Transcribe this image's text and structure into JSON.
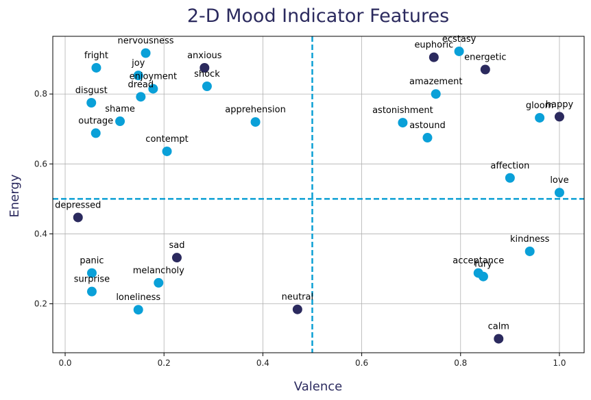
{
  "chart_data": {
    "type": "scatter",
    "title": "2-D Mood Indicator Features",
    "xlabel": "Valence",
    "ylabel": "Energy",
    "xlim": [
      -0.025,
      1.05
    ],
    "ylim": [
      0.06,
      0.965
    ],
    "xticks": [
      0.0,
      0.2,
      0.4,
      0.6,
      0.8,
      1.0
    ],
    "xtick_labels": [
      "0.0",
      "0.2",
      "0.4",
      "0.6",
      "0.8",
      "1.0"
    ],
    "yticks": [
      0.2,
      0.4,
      0.6,
      0.8
    ],
    "ytick_labels": [
      "0.2",
      "0.4",
      "0.6",
      "0.8"
    ],
    "grid": true,
    "threshold_lines": {
      "x": 0.5,
      "y": 0.5,
      "color": "#0a9fd4",
      "style": "dashed"
    },
    "colors": {
      "light": "#0aa0d8",
      "dark": "#2b2a5e"
    },
    "points": [
      {
        "label": "nervousness",
        "x": 0.163,
        "y": 0.917,
        "color": "light"
      },
      {
        "label": "fright",
        "x": 0.063,
        "y": 0.875,
        "color": "light"
      },
      {
        "label": "anxious",
        "x": 0.282,
        "y": 0.875,
        "color": "dark"
      },
      {
        "label": "joy",
        "x": 0.148,
        "y": 0.853,
        "color": "light"
      },
      {
        "label": "enjoyment",
        "x": 0.178,
        "y": 0.815,
        "color": "light"
      },
      {
        "label": "shock",
        "x": 0.287,
        "y": 0.822,
        "color": "light"
      },
      {
        "label": "dread",
        "x": 0.153,
        "y": 0.792,
        "color": "light"
      },
      {
        "label": "disgust",
        "x": 0.053,
        "y": 0.775,
        "color": "light"
      },
      {
        "label": "shame",
        "x": 0.111,
        "y": 0.722,
        "color": "light"
      },
      {
        "label": "outrage",
        "x": 0.062,
        "y": 0.688,
        "color": "light"
      },
      {
        "label": "apprehension",
        "x": 0.385,
        "y": 0.72,
        "color": "light"
      },
      {
        "label": "contempt",
        "x": 0.206,
        "y": 0.636,
        "color": "light"
      },
      {
        "label": "depressed",
        "x": 0.026,
        "y": 0.447,
        "color": "dark"
      },
      {
        "label": "sad",
        "x": 0.226,
        "y": 0.332,
        "color": "dark"
      },
      {
        "label": "panic",
        "x": 0.054,
        "y": 0.288,
        "color": "light"
      },
      {
        "label": "melancholy",
        "x": 0.189,
        "y": 0.26,
        "color": "light"
      },
      {
        "label": "surprise",
        "x": 0.054,
        "y": 0.235,
        "color": "light"
      },
      {
        "label": "loneliness",
        "x": 0.148,
        "y": 0.183,
        "color": "light"
      },
      {
        "label": "neutral",
        "x": 0.47,
        "y": 0.184,
        "color": "dark"
      },
      {
        "label": "ecstasy",
        "x": 0.797,
        "y": 0.922,
        "color": "light"
      },
      {
        "label": "euphoric",
        "x": 0.746,
        "y": 0.905,
        "color": "dark"
      },
      {
        "label": "energetic",
        "x": 0.85,
        "y": 0.87,
        "color": "dark"
      },
      {
        "label": "amazement",
        "x": 0.75,
        "y": 0.8,
        "color": "light"
      },
      {
        "label": "astonishment",
        "x": 0.683,
        "y": 0.718,
        "color": "light"
      },
      {
        "label": "astound",
        "x": 0.733,
        "y": 0.675,
        "color": "light"
      },
      {
        "label": "gloom",
        "x": 0.96,
        "y": 0.732,
        "color": "light"
      },
      {
        "label": "happy",
        "x": 1.0,
        "y": 0.735,
        "color": "dark"
      },
      {
        "label": "affection",
        "x": 0.9,
        "y": 0.56,
        "color": "light"
      },
      {
        "label": "love",
        "x": 1.0,
        "y": 0.518,
        "color": "light"
      },
      {
        "label": "kindness",
        "x": 0.94,
        "y": 0.35,
        "color": "light"
      },
      {
        "label": "acceptance",
        "x": 0.836,
        "y": 0.288,
        "color": "light"
      },
      {
        "label": "fury",
        "x": 0.846,
        "y": 0.278,
        "color": "light"
      },
      {
        "label": "calm",
        "x": 0.877,
        "y": 0.1,
        "color": "dark"
      }
    ]
  }
}
